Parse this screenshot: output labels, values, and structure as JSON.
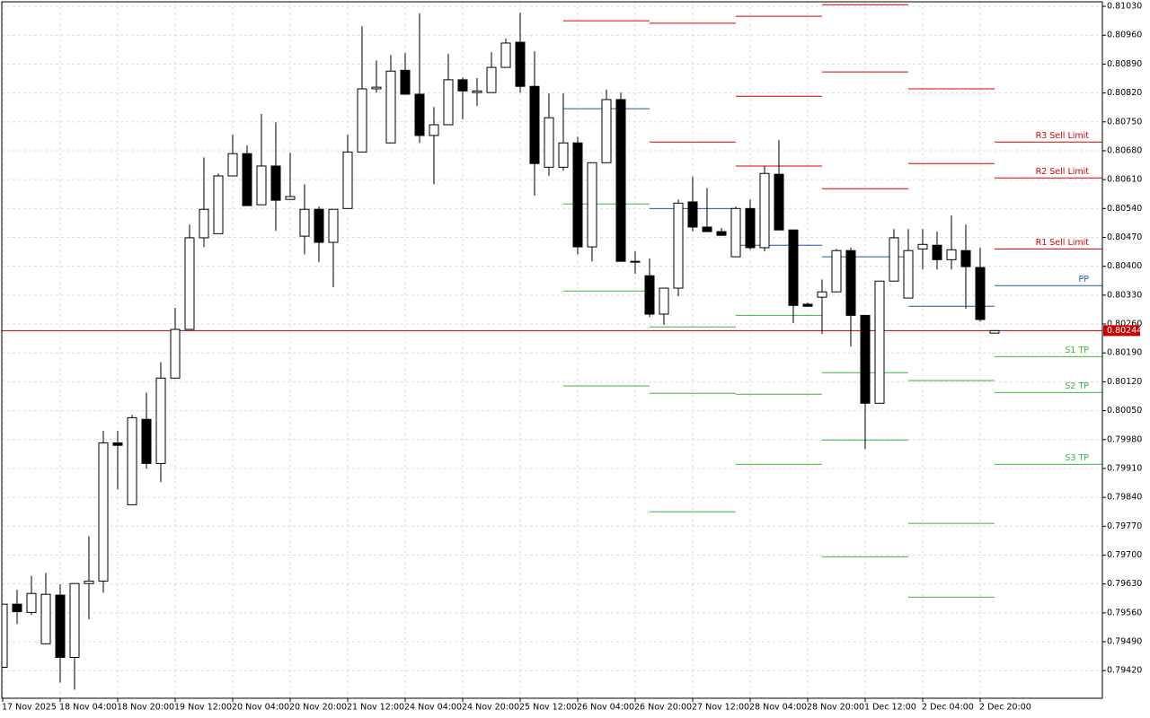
{
  "chart_data": {
    "type": "candlestick",
    "grid": true,
    "categories": [
      "17 Nov 2025",
      null,
      null,
      null,
      "18 Nov 04:00",
      null,
      null,
      null,
      "18 Nov 20:00",
      null,
      null,
      null,
      "19 Nov 12:00",
      null,
      null,
      null,
      "20 Nov 04:00",
      null,
      null,
      null,
      "20 Nov 20:00",
      null,
      null,
      null,
      "21 Nov 12:00",
      null,
      null,
      null,
      "24 Nov 04:00",
      null,
      null,
      null,
      "24 Nov 20:00",
      null,
      null,
      null,
      "25 Nov 12:00",
      null,
      null,
      null,
      "26 Nov 04:00",
      null,
      null,
      null,
      "26 Nov 20:00",
      null,
      null,
      null,
      "27 Nov 12:00",
      null,
      null,
      null,
      "28 Nov 04:00",
      null,
      null,
      null,
      "28 Nov 20:00",
      null,
      null,
      null,
      "1 Dec 12:00",
      null,
      null,
      null,
      "2 Dec 04:00",
      null,
      null,
      null,
      "2 Dec 20:00",
      null
    ],
    "open": [
      0.79428,
      0.79581,
      0.79561,
      0.79485,
      0.79603,
      0.79452,
      0.79631,
      0.79637,
      0.79972,
      0.79822,
      0.80029,
      0.79922,
      0.80129,
      0.80247,
      0.80469,
      0.80479,
      0.80619,
      0.80673,
      0.80549,
      0.80643,
      0.80562,
      0.80473,
      0.80538,
      0.80458,
      0.8054,
      0.80677,
      0.8083,
      0.80699,
      0.80875,
      0.80817,
      0.80717,
      0.80743,
      0.80852,
      0.80821,
      0.80821,
      0.80882,
      0.80943,
      0.80836,
      0.8064,
      0.8064,
      0.80699,
      0.80447,
      0.80651,
      0.80804,
      0.80412,
      0.80377,
      0.80284,
      0.80347,
      0.80556,
      0.80495,
      0.80484,
      0.80423,
      0.8054,
      0.80445,
      0.80623,
      0.80488,
      0.80308,
      0.80325,
      0.80338,
      0.80438,
      0.80281,
      0.80068,
      0.80364,
      0.80323,
      0.80442,
      0.80451,
      0.80416,
      0.80438,
      0.80397,
      0.80238
    ],
    "high": [
      0.79581,
      0.79616,
      0.7965,
      0.79657,
      0.79629,
      0.79631,
      0.79746,
      0.80001,
      0.80001,
      0.8004,
      0.80094,
      0.80168,
      0.80299,
      0.80501,
      0.80664,
      0.80625,
      0.80719,
      0.80693,
      0.80769,
      0.80749,
      0.80675,
      0.80599,
      0.80545,
      0.80538,
      0.80719,
      0.80982,
      0.80899,
      0.80912,
      0.80917,
      0.81013,
      0.80786,
      0.80915,
      0.80858,
      0.80856,
      0.80919,
      0.80952,
      0.81015,
      0.80921,
      0.80819,
      0.80819,
      0.80714,
      0.80651,
      0.80828,
      0.80821,
      0.80436,
      0.80419,
      0.80347,
      0.80562,
      0.80617,
      0.8059,
      0.80493,
      0.80545,
      0.80562,
      0.80643,
      0.80706,
      0.80488,
      0.80312,
      0.80368,
      0.80442,
      0.80445,
      0.80281,
      0.80364,
      0.8049,
      0.8049,
      0.8049,
      0.80484,
      0.80523,
      0.80501,
      0.80445,
      0.80244
    ],
    "low": [
      0.79428,
      0.79533,
      0.79555,
      0.79485,
      0.79391,
      0.79374,
      0.79544,
      0.79609,
      0.79859,
      0.79822,
      0.79909,
      0.79877,
      0.80129,
      0.80247,
      0.80447,
      0.80479,
      0.80619,
      0.80547,
      0.80549,
      0.80486,
      0.80562,
      0.80429,
      0.8041,
      0.80349,
      0.8054,
      0.80677,
      0.80821,
      0.80699,
      0.80817,
      0.80699,
      0.80599,
      0.80743,
      0.80756,
      0.80788,
      0.80821,
      0.80882,
      0.80821,
      0.80571,
      0.80619,
      0.80632,
      0.80429,
      0.80412,
      0.80651,
      0.80412,
      0.80382,
      0.80277,
      0.80258,
      0.80327,
      0.80484,
      0.80484,
      0.80475,
      0.80423,
      0.8044,
      0.80436,
      0.80488,
      0.80262,
      0.80303,
      0.80236,
      0.80338,
      0.80205,
      0.79957,
      0.80068,
      0.80364,
      0.80323,
      0.80392,
      0.80392,
      0.80392,
      0.80297,
      0.80266,
      0.80238
    ],
    "close": [
      0.79581,
      0.79563,
      0.79607,
      0.79605,
      0.79452,
      0.79631,
      0.79637,
      0.79972,
      0.79966,
      0.80033,
      0.79922,
      0.80129,
      0.80247,
      0.80469,
      0.80538,
      0.80619,
      0.80673,
      0.80547,
      0.80643,
      0.8056,
      0.80569,
      0.80538,
      0.80458,
      0.80538,
      0.80677,
      0.8083,
      0.80834,
      0.80873,
      0.80817,
      0.80717,
      0.80743,
      0.80852,
      0.80825,
      0.80825,
      0.80882,
      0.80941,
      0.80836,
      0.80649,
      0.8076,
      0.80699,
      0.80447,
      0.80651,
      0.80804,
      0.80412,
      0.80412,
      0.80284,
      0.80347,
      0.80553,
      0.80495,
      0.80484,
      0.80475,
      0.8054,
      0.80445,
      0.80625,
      0.80488,
      0.80305,
      0.80303,
      0.80338,
      0.80438,
      0.80281,
      0.80068,
      0.80364,
      0.80469,
      0.80438,
      0.80453,
      0.80416,
      0.8044,
      0.80399,
      0.80271,
      0.80244
    ],
    "up_color": "#ffffff",
    "down_color": "#000000",
    "levels": [
      {
        "name": "R3 Sell Limit",
        "color": "#d40000",
        "values": [
          null,
          null,
          null,
          null,
          null,
          null,
          null,
          null,
          null,
          null,
          null,
          null,
          null,
          null,
          null,
          null,
          null,
          null,
          null,
          null,
          null,
          null,
          null,
          null,
          null,
          null,
          null,
          null,
          null,
          null,
          null,
          null,
          null,
          null,
          null,
          null,
          null,
          null,
          null,
          null,
          null,
          null,
          null,
          null,
          null,
          null,
          null,
          null,
          null,
          null,
          null,
          0.81006,
          0.81006,
          0.81006,
          0.81006,
          0.81006,
          0.81006,
          0.81034,
          0.81034,
          0.81034,
          0.81034,
          0.81034,
          0.81034,
          null,
          null,
          null,
          null,
          null,
          null,
          0.80701
        ]
      },
      {
        "name": "R2 Sell Limit",
        "color": "#d40000",
        "values": [
          null,
          null,
          null,
          null,
          null,
          null,
          null,
          null,
          null,
          null,
          null,
          null,
          null,
          null,
          null,
          null,
          null,
          null,
          null,
          null,
          null,
          null,
          null,
          null,
          null,
          null,
          null,
          null,
          null,
          null,
          null,
          null,
          null,
          null,
          null,
          null,
          null,
          null,
          null,
          null,
          null,
          null,
          null,
          null,
          null,
          0.80989,
          0.80989,
          0.80989,
          0.80989,
          0.80989,
          0.80989,
          0.80812,
          0.80812,
          0.80812,
          0.80812,
          0.80812,
          0.80812,
          0.80871,
          0.80871,
          0.80871,
          0.80871,
          0.80871,
          0.80871,
          0.8083,
          0.8083,
          0.8083,
          0.8083,
          0.8083,
          0.8083,
          0.80614
        ]
      },
      {
        "name": "R1 Sell Limit",
        "color": "#d40000",
        "values": [
          null,
          null,
          null,
          null,
          null,
          null,
          null,
          null,
          null,
          null,
          null,
          null,
          null,
          null,
          null,
          null,
          null,
          null,
          null,
          null,
          null,
          null,
          null,
          null,
          null,
          null,
          null,
          null,
          null,
          null,
          null,
          null,
          null,
          null,
          null,
          null,
          null,
          null,
          null,
          0.80995,
          0.80995,
          0.80995,
          0.80995,
          0.80995,
          0.80995,
          0.80701,
          0.80701,
          0.80701,
          0.80701,
          0.80701,
          0.80701,
          0.80643,
          0.80643,
          0.80643,
          0.80643,
          0.80643,
          0.80643,
          0.80588,
          0.80588,
          0.80588,
          0.80588,
          0.80588,
          0.80588,
          0.80649,
          0.80649,
          0.80649,
          0.80649,
          0.80649,
          0.80649,
          0.80442
        ]
      },
      {
        "name": "PP",
        "color": "#1f5aa6",
        "values": [
          null,
          null,
          null,
          null,
          null,
          null,
          null,
          null,
          null,
          null,
          null,
          null,
          null,
          null,
          null,
          null,
          null,
          null,
          null,
          null,
          null,
          null,
          null,
          null,
          null,
          null,
          null,
          null,
          null,
          null,
          null,
          null,
          null,
          null,
          null,
          null,
          null,
          null,
          null,
          0.80782,
          0.80782,
          0.80782,
          0.80782,
          0.80782,
          0.80782,
          0.8054,
          0.8054,
          0.8054,
          0.8054,
          0.8054,
          0.8054,
          0.80451,
          0.80451,
          0.80451,
          0.80451,
          0.80451,
          0.80451,
          0.80423,
          0.80423,
          0.80423,
          0.80423,
          0.80423,
          0.80423,
          0.80303,
          0.80303,
          0.80303,
          0.80303,
          0.80303,
          0.80303,
          0.80353
        ]
      },
      {
        "name": "S1 TP",
        "color": "#3cb43c",
        "values": [
          null,
          null,
          null,
          null,
          null,
          null,
          null,
          null,
          null,
          null,
          null,
          null,
          null,
          null,
          null,
          null,
          null,
          null,
          null,
          null,
          null,
          null,
          null,
          null,
          null,
          null,
          null,
          null,
          null,
          null,
          null,
          null,
          null,
          null,
          null,
          null,
          null,
          null,
          null,
          0.80551,
          0.80551,
          0.80551,
          0.80551,
          0.80551,
          0.80551,
          0.80253,
          0.80253,
          0.80253,
          0.80253,
          0.80253,
          0.80253,
          0.80281,
          0.80281,
          0.80281,
          0.80281,
          0.80281,
          0.80281,
          0.80142,
          0.80142,
          0.80142,
          0.80142,
          0.80142,
          0.80142,
          0.80123,
          0.80123,
          0.80123,
          0.80123,
          0.80123,
          0.80123,
          0.80181
        ]
      },
      {
        "name": "S2 TP",
        "color": "#3cb43c",
        "values": [
          null,
          null,
          null,
          null,
          null,
          null,
          null,
          null,
          null,
          null,
          null,
          null,
          null,
          null,
          null,
          null,
          null,
          null,
          null,
          null,
          null,
          null,
          null,
          null,
          null,
          null,
          null,
          null,
          null,
          null,
          null,
          null,
          null,
          null,
          null,
          null,
          null,
          null,
          null,
          0.8034,
          0.8034,
          0.8034,
          0.8034,
          0.8034,
          0.8034,
          0.80092,
          0.80092,
          0.80092,
          0.80092,
          0.80092,
          0.80092,
          0.8009,
          0.8009,
          0.8009,
          0.8009,
          0.8009,
          0.8009,
          0.79979,
          0.79979,
          0.79979,
          0.79979,
          0.79979,
          0.79979,
          0.79777,
          0.79777,
          0.79777,
          0.79777,
          0.79777,
          0.79777,
          0.80094
        ]
      },
      {
        "name": "S3 TP",
        "color": "#3cb43c",
        "values": [
          null,
          null,
          null,
          null,
          null,
          null,
          null,
          null,
          null,
          null,
          null,
          null,
          null,
          null,
          null,
          null,
          null,
          null,
          null,
          null,
          null,
          null,
          null,
          null,
          null,
          null,
          null,
          null,
          null,
          null,
          null,
          null,
          null,
          null,
          null,
          null,
          null,
          null,
          null,
          0.8011,
          0.8011,
          0.8011,
          0.8011,
          0.8011,
          0.8011,
          0.79805,
          0.79805,
          0.79805,
          0.79805,
          0.79805,
          0.79805,
          0.7992,
          0.7992,
          0.7992,
          0.7992,
          0.7992,
          0.7992,
          0.79696,
          0.79696,
          0.79696,
          0.79696,
          0.79696,
          0.79696,
          0.79598,
          0.79598,
          0.79598,
          0.79598,
          0.79598,
          0.79598,
          0.7992
        ]
      }
    ],
    "current_price": 0.80244,
    "current_price_color": "#c80000",
    "ylim": [
      0.79353,
      0.81041
    ],
    "yticks": [
      {
        "value": 0.8103,
        "label": "0.81030"
      },
      {
        "value": 0.8096,
        "label": "0.80960"
      },
      {
        "value": 0.8089,
        "label": "0.80890"
      },
      {
        "value": 0.8082,
        "label": "0.80820"
      },
      {
        "value": 0.8075,
        "label": "0.80750"
      },
      {
        "value": 0.8068,
        "label": "0.80680"
      },
      {
        "value": 0.8061,
        "label": "0.80610"
      },
      {
        "value": 0.8054,
        "label": "0.80540"
      },
      {
        "value": 0.8047,
        "label": "0.80470"
      },
      {
        "value": 0.804,
        "label": "0.80400"
      },
      {
        "value": 0.8033,
        "label": "0.80330"
      },
      {
        "value": 0.8026,
        "label": "0.80260"
      },
      {
        "value": 0.8019,
        "label": "0.80190"
      },
      {
        "value": 0.8012,
        "label": "0.80120"
      },
      {
        "value": 0.8005,
        "label": "0.80050"
      },
      {
        "value": 0.7998,
        "label": "0.79980"
      },
      {
        "value": 0.7991,
        "label": "0.79910"
      },
      {
        "value": 0.7984,
        "label": "0.79840"
      },
      {
        "value": 0.7977,
        "label": "0.79770"
      },
      {
        "value": 0.797,
        "label": "0.79700"
      },
      {
        "value": 0.7963,
        "label": "0.79630"
      },
      {
        "value": 0.7956,
        "label": "0.79560"
      },
      {
        "value": 0.7949,
        "label": "0.79490"
      },
      {
        "value": 0.7942,
        "label": "0.79420"
      }
    ]
  }
}
